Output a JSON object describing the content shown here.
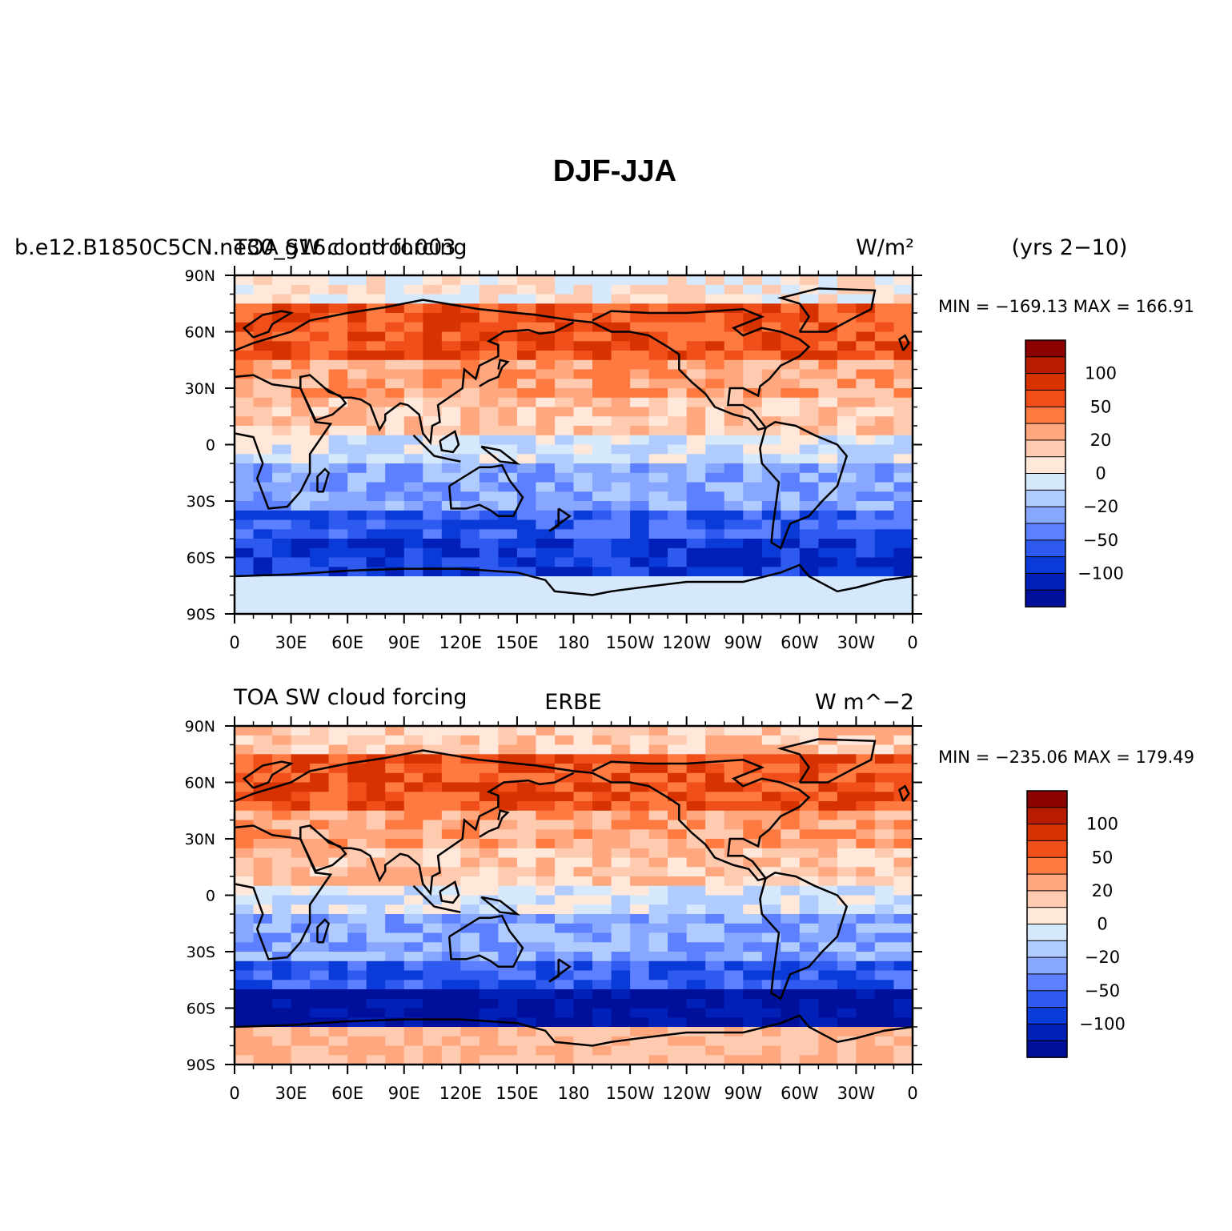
{
  "chart_data": {
    "type": "heatmap",
    "title": "DJF-JJA",
    "colors": [
      "#8b0000",
      "#b81c00",
      "#d73300",
      "#f04f1a",
      "#ff7a40",
      "#ffa880",
      "#ffcbb0",
      "#ffe8da",
      "#d6e8fb",
      "#b0ccff",
      "#88a8ff",
      "#5c80ff",
      "#2f5af0",
      "#0a3ad8",
      "#0020b8",
      "#00109a"
    ],
    "colorbar_labels": [
      "100",
      "50",
      "20",
      "0",
      "−20",
      "−50",
      "−100"
    ],
    "x_ticks": [
      "0",
      "30E",
      "60E",
      "90E",
      "120E",
      "150E",
      "180",
      "150W",
      "120W",
      "90W",
      "60W",
      "30W",
      "0"
    ],
    "y_ticks": [
      "90N",
      "60N",
      "30N",
      "0",
      "30S",
      "60S",
      "90S"
    ],
    "panels": [
      {
        "left_title": "b.e12.B1850C5CN.ne30_g16.control.003",
        "left_title_overlap": "TOA SW cloud forcing",
        "units": "W/m²",
        "right_label": "(yrs 2−10)",
        "min_max": "MIN = −169.13 MAX = 166.91",
        "min": -169.13,
        "max": 166.91
      },
      {
        "left_title": "TOA SW cloud forcing",
        "center_title": "ERBE",
        "units": "W m^−2",
        "min_max": "MIN = −235.06 MAX = 179.49",
        "min": -235.06,
        "max": 179.49
      }
    ]
  }
}
